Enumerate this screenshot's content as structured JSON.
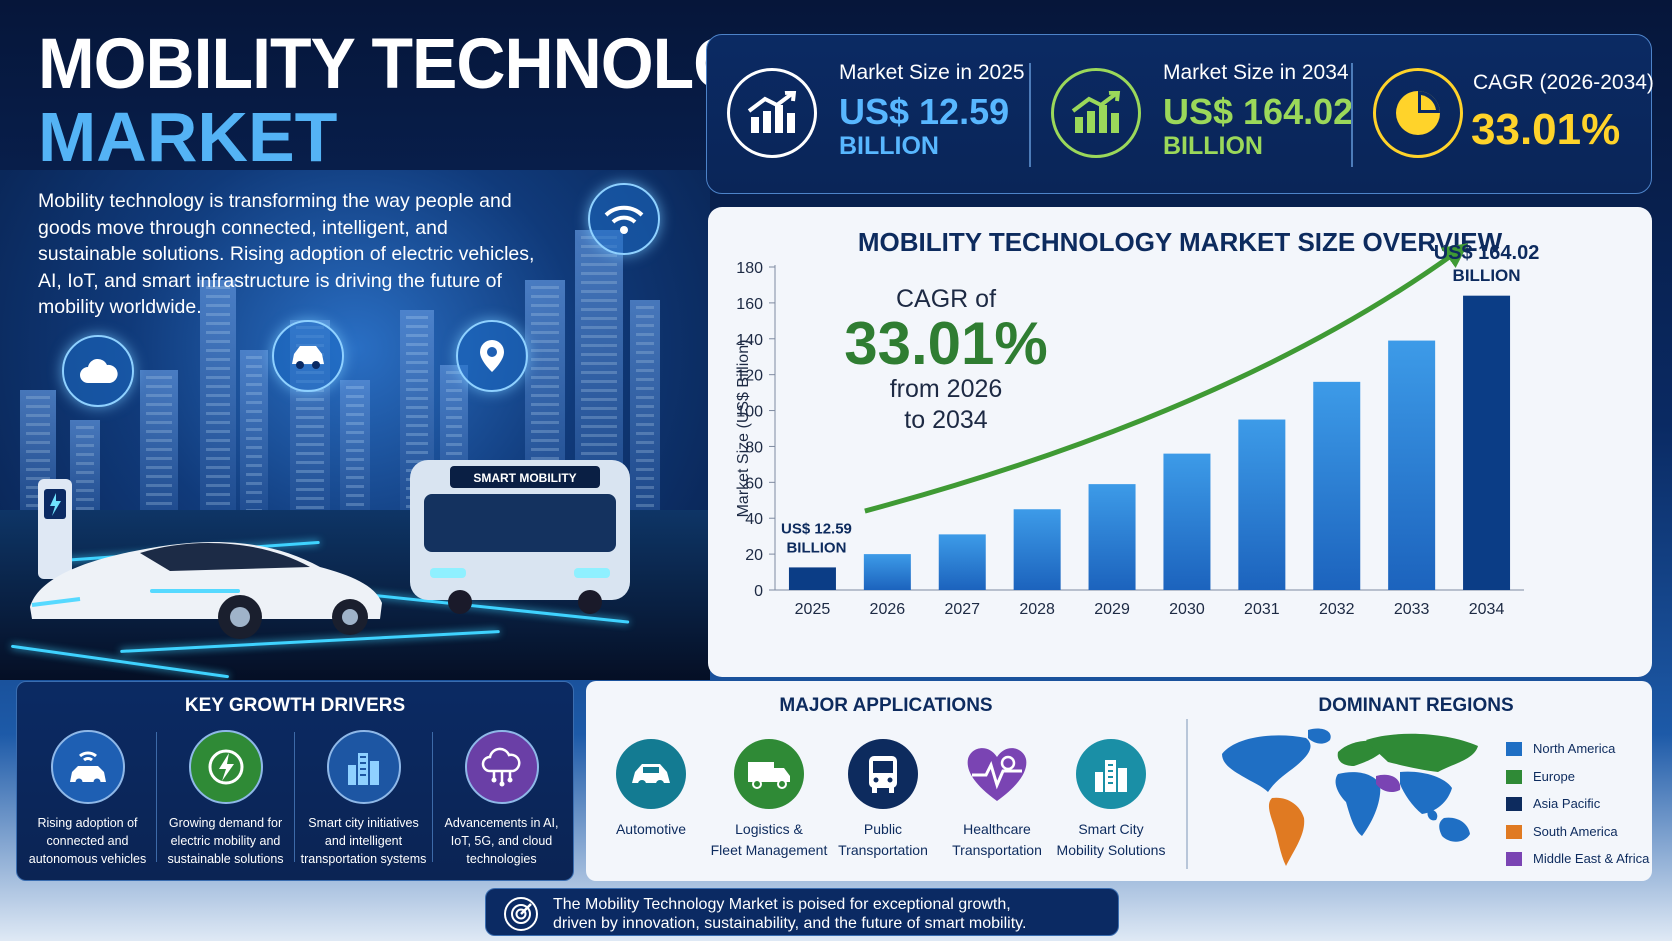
{
  "header": {
    "title_line1": "MOBILITY TECHNOLOGY",
    "title_line2": "MARKET",
    "intro": "Mobility technology is transforming the way people and goods move through connected, intelligent, and sustainable solutions. Rising adoption of electric vehicles, AI, IoT, and smart infrastructure is driving the future of mobility worldwide."
  },
  "hero": {
    "bus_sign": "SMART MOBILITY",
    "icons": [
      "cloud-icon",
      "car-icon",
      "location-icon",
      "wifi-icon"
    ]
  },
  "stats": [
    {
      "label": "Market Size in 2025",
      "value": "US$ 12.59",
      "unit": "BILLION",
      "color": "#58b7ff",
      "icon": "growth-chart-icon"
    },
    {
      "label": "Market Size in 2034",
      "value": "US$ 164.02",
      "unit": "BILLION",
      "color": "#9bd85a",
      "icon": "growth-chart-icon"
    },
    {
      "label": "CAGR (2026-2034)",
      "value": "33.01%",
      "unit": "",
      "color": "#ffd32a",
      "icon": "pie-chart-icon"
    }
  ],
  "chart_data": {
    "type": "bar",
    "title": "MOBILITY TECHNOLOGY MARKET SIZE OVERVIEW",
    "xlabel": "",
    "ylabel": "Market Size (US$ Billion)",
    "categories": [
      "2025",
      "2026",
      "2027",
      "2028",
      "2029",
      "2030",
      "2031",
      "2032",
      "2033",
      "2034"
    ],
    "values": [
      12.59,
      20,
      31,
      45,
      59,
      76,
      95,
      116,
      139,
      164.02
    ],
    "ylim": [
      0,
      180
    ],
    "yticks": [
      0,
      20,
      40,
      60,
      80,
      100,
      120,
      140,
      160,
      180
    ],
    "grid": false,
    "annotations": {
      "first_value": "US$ 12.59",
      "first_unit": "BILLION",
      "last_value": "US$ 164.02",
      "last_unit": "BILLION",
      "cagr_prefix": "CAGR of",
      "cagr_value": "33.01%",
      "cagr_line1": "from 2026",
      "cagr_line2": "to 2034"
    },
    "colors": {
      "bar_light": "#3d9be8",
      "bar_dark": "#0b3d86",
      "trend": "#3f9a34"
    }
  },
  "drivers": {
    "title": "KEY GROWTH DRIVERS",
    "items": [
      {
        "line1": "Rising adoption of",
        "line2": "connected and",
        "line3": "autonomous vehicles",
        "icon": "connected-car-icon",
        "color": "#1e5fb3"
      },
      {
        "line1": "Growing demand for",
        "line2": "electric mobility and",
        "line3": "sustainable solutions",
        "icon": "lightning-icon",
        "color": "#2f8a36"
      },
      {
        "line1": "Smart city initiatives",
        "line2": "and intelligent",
        "line3": "transportation systems",
        "icon": "city-icon",
        "color": "#1d56a3"
      },
      {
        "line1": "Advancements in AI,",
        "line2": "IoT, 5G, and cloud",
        "line3": "technologies",
        "icon": "cloud-network-icon",
        "color": "#6a3fa6"
      }
    ]
  },
  "applications": {
    "title": "MAJOR APPLICATIONS",
    "items": [
      {
        "line1": "Automotive",
        "line2": "",
        "icon": "car-icon",
        "color": "#137b92"
      },
      {
        "line1": "Logistics &",
        "line2": "Fleet Management",
        "icon": "truck-icon",
        "color": "#2f8a36"
      },
      {
        "line1": "Public",
        "line2": "Transportation",
        "icon": "bus-icon",
        "color": "#0d2b5e"
      },
      {
        "line1": "Healthcare",
        "line2": "Transportation",
        "icon": "heart-pulse-icon",
        "color": "#7a44b3"
      },
      {
        "line1": "Smart City",
        "line2": "Mobility Solutions",
        "icon": "city-icon",
        "color": "#1a8fa6"
      }
    ]
  },
  "regions": {
    "title": "DOMINANT REGIONS",
    "items": [
      {
        "label": "North America",
        "color": "#1f6fc4"
      },
      {
        "label": "Europe",
        "color": "#2f8a36"
      },
      {
        "label": "Asia Pacific",
        "color": "#0d2b5e"
      },
      {
        "label": "South America",
        "color": "#e07a22"
      },
      {
        "label": "Middle East & Africa",
        "color": "#7a44b3"
      }
    ]
  },
  "footer": {
    "line1": "The Mobility Technology Market is poised for exceptional growth,",
    "line2": "driven by innovation, sustainability, and the future of smart mobility.",
    "icon": "target-icon"
  }
}
